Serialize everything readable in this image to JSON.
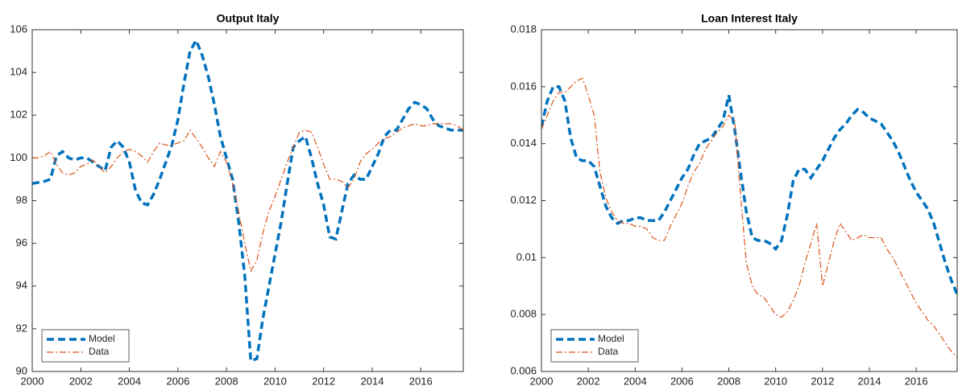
{
  "chart_data": [
    {
      "type": "line",
      "title": "Output Italy",
      "x": [
        2000,
        2000.25,
        2000.5,
        2000.75,
        2001,
        2001.25,
        2001.5,
        2001.75,
        2002,
        2002.25,
        2002.5,
        2002.75,
        2003,
        2003.25,
        2003.5,
        2003.75,
        2004,
        2004.25,
        2004.5,
        2004.75,
        2005,
        2005.25,
        2005.5,
        2005.75,
        2006,
        2006.25,
        2006.5,
        2006.75,
        2007,
        2007.25,
        2007.5,
        2007.75,
        2008,
        2008.25,
        2008.5,
        2008.75,
        2009,
        2009.25,
        2009.5,
        2009.75,
        2010,
        2010.25,
        2010.5,
        2010.75,
        2011,
        2011.25,
        2011.5,
        2011.75,
        2012,
        2012.25,
        2012.5,
        2012.75,
        2013,
        2013.25,
        2013.5,
        2013.75,
        2014,
        2014.25,
        2014.5,
        2014.75,
        2015,
        2015.25,
        2015.5,
        2015.75,
        2016,
        2016.25,
        2016.5,
        2016.75,
        2017,
        2017.25,
        2017.5,
        2017.75
      ],
      "series": [
        {
          "name": "Model",
          "color": "#0072bd",
          "linestyle": "dashed",
          "values": [
            98.8,
            98.85,
            98.9,
            99.0,
            100.1,
            100.3,
            100.0,
            99.9,
            100.0,
            100.0,
            99.8,
            99.6,
            99.4,
            100.5,
            100.8,
            100.5,
            99.8,
            98.5,
            97.9,
            97.8,
            98.3,
            99.0,
            99.8,
            100.6,
            101.8,
            103.5,
            105.0,
            105.5,
            104.8,
            103.8,
            102.5,
            101.0,
            100.0,
            99.0,
            97.0,
            94.5,
            90.5,
            90.6,
            92.5,
            94.0,
            95.5,
            97.0,
            98.8,
            100.5,
            100.8,
            101.0,
            100.0,
            98.8,
            97.8,
            96.3,
            96.2,
            97.5,
            98.8,
            99.2,
            99.0,
            99.0,
            99.6,
            100.2,
            101.0,
            101.3,
            101.3,
            101.8,
            102.3,
            102.6,
            102.5,
            102.3,
            101.8,
            101.5,
            101.4,
            101.3,
            101.3,
            101.3
          ]
        },
        {
          "name": "Data",
          "color": "#d95319",
          "linestyle": "dashdot",
          "values": [
            100.0,
            100.0,
            100.1,
            100.3,
            99.7,
            99.3,
            99.2,
            99.3,
            99.6,
            99.7,
            99.9,
            99.6,
            99.3,
            99.6,
            100.0,
            100.3,
            100.4,
            100.3,
            100.1,
            99.8,
            100.3,
            100.7,
            100.6,
            100.6,
            100.7,
            100.8,
            101.3,
            100.9,
            100.5,
            100.0,
            99.6,
            100.3,
            99.8,
            98.8,
            97.5,
            96.0,
            94.7,
            95.2,
            96.5,
            97.5,
            98.2,
            99.0,
            99.8,
            100.5,
            101.2,
            101.3,
            101.2,
            100.5,
            99.7,
            99.0,
            99.0,
            98.9,
            98.6,
            99.0,
            99.8,
            100.2,
            100.4,
            100.7,
            100.9,
            101.0,
            101.2,
            101.4,
            101.5,
            101.6,
            101.5,
            101.5,
            101.6,
            101.6,
            101.6,
            101.6,
            101.5,
            101.3
          ]
        }
      ],
      "xlim": [
        2000,
        2017.75
      ],
      "xticks": [
        2000,
        2002,
        2004,
        2006,
        2008,
        2010,
        2012,
        2014,
        2016
      ],
      "ylim": [
        90,
        106
      ],
      "yticks": [
        90,
        92,
        94,
        96,
        98,
        100,
        102,
        104,
        106
      ],
      "grid": false,
      "legend": "lower left"
    },
    {
      "type": "line",
      "title": "Loan Interest Italy",
      "x": [
        2000,
        2000.25,
        2000.5,
        2000.75,
        2001,
        2001.25,
        2001.5,
        2001.75,
        2002,
        2002.25,
        2002.5,
        2002.75,
        2003,
        2003.25,
        2003.5,
        2003.75,
        2004,
        2004.25,
        2004.5,
        2004.75,
        2005,
        2005.25,
        2005.5,
        2005.75,
        2006,
        2006.25,
        2006.5,
        2006.75,
        2007,
        2007.25,
        2007.5,
        2007.75,
        2008,
        2008.25,
        2008.5,
        2008.75,
        2009,
        2009.25,
        2009.5,
        2009.75,
        2010,
        2010.25,
        2010.5,
        2010.75,
        2011,
        2011.25,
        2011.5,
        2011.75,
        2012,
        2012.25,
        2012.5,
        2012.75,
        2013,
        2013.25,
        2013.5,
        2013.75,
        2014,
        2014.25,
        2014.5,
        2014.75,
        2015,
        2015.25,
        2015.5,
        2015.75,
        2016,
        2016.25,
        2016.5,
        2016.75,
        2017,
        2017.25,
        2017.5,
        2017.75
      ],
      "series": [
        {
          "name": "Model",
          "color": "#0072bd",
          "linestyle": "dashed",
          "values": [
            0.0146,
            0.0155,
            0.016,
            0.016,
            0.0155,
            0.0142,
            0.0135,
            0.0134,
            0.0134,
            0.0132,
            0.0125,
            0.0118,
            0.0114,
            0.0112,
            0.0113,
            0.0113,
            0.0114,
            0.0114,
            0.0113,
            0.0113,
            0.0113,
            0.0116,
            0.012,
            0.0124,
            0.0128,
            0.0131,
            0.0136,
            0.014,
            0.0141,
            0.0142,
            0.0145,
            0.0148,
            0.0157,
            0.0145,
            0.013,
            0.0116,
            0.0107,
            0.0106,
            0.0106,
            0.0105,
            0.0103,
            0.0106,
            0.0115,
            0.0127,
            0.0131,
            0.0131,
            0.0128,
            0.0131,
            0.0134,
            0.0138,
            0.0142,
            0.0145,
            0.0147,
            0.015,
            0.0152,
            0.0151,
            0.0149,
            0.0148,
            0.0147,
            0.0144,
            0.0141,
            0.0137,
            0.0132,
            0.0127,
            0.0123,
            0.012,
            0.0117,
            0.0112,
            0.0105,
            0.0098,
            0.0092,
            0.0087
          ]
        },
        {
          "name": "Data",
          "color": "#d95319",
          "linestyle": "dashdot",
          "values": [
            0.0145,
            0.015,
            0.0155,
            0.0158,
            0.0158,
            0.016,
            0.0162,
            0.0163,
            0.0157,
            0.015,
            0.013,
            0.0121,
            0.0116,
            0.0113,
            0.0112,
            0.0112,
            0.0111,
            0.0111,
            0.011,
            0.0107,
            0.0106,
            0.0106,
            0.0111,
            0.0115,
            0.0119,
            0.0125,
            0.013,
            0.0133,
            0.0138,
            0.0141,
            0.0144,
            0.0146,
            0.015,
            0.0148,
            0.0122,
            0.0098,
            0.009,
            0.0087,
            0.0086,
            0.0083,
            0.008,
            0.0079,
            0.0081,
            0.0085,
            0.009,
            0.0098,
            0.0105,
            0.0112,
            0.009,
            0.0098,
            0.0106,
            0.0112,
            0.0109,
            0.0106,
            0.0107,
            0.0108,
            0.0107,
            0.0107,
            0.0107,
            0.0103,
            0.01,
            0.0096,
            0.0092,
            0.0088,
            0.0084,
            0.0081,
            0.0078,
            0.0076,
            0.0073,
            0.007,
            0.0067,
            0.0065
          ]
        }
      ],
      "xlim": [
        2000,
        2017.75
      ],
      "xticks": [
        2000,
        2002,
        2004,
        2006,
        2008,
        2010,
        2012,
        2014,
        2016
      ],
      "ylim": [
        0.006,
        0.018
      ],
      "yticks": [
        0.006,
        0.008,
        0.01,
        0.012,
        0.014,
        0.016,
        0.018
      ],
      "grid": false,
      "legend": "lower left"
    }
  ]
}
